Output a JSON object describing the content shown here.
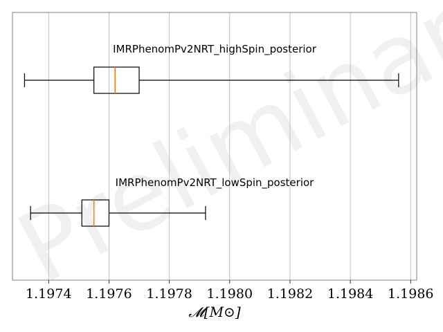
{
  "chart_data": {
    "type": "boxplot",
    "orientation": "horizontal",
    "watermark": "Preliminary",
    "xlabel": "𝓜[M⊙]",
    "xlim": [
      1.19728,
      1.19862
    ],
    "xticks": [
      1.1974,
      1.1976,
      1.1978,
      1.198,
      1.1982,
      1.1984,
      1.1986
    ],
    "xtick_labels": [
      "1.1974",
      "1.1976",
      "1.1978",
      "1.1980",
      "1.1982",
      "1.1984",
      "1.1986"
    ],
    "grid": {
      "x": true,
      "y": false
    },
    "series": [
      {
        "name": "IMRPhenomPv2NRT_highSpin_posterior",
        "whisker_low": 1.19732,
        "q1": 1.19755,
        "median": 1.19762,
        "q3": 1.1977,
        "whisker_high": 1.19856
      },
      {
        "name": "IMRPhenomPv2NRT_lowSpin_posterior",
        "whisker_low": 1.19734,
        "q1": 1.19751,
        "median": 1.19755,
        "q3": 1.1976,
        "whisker_high": 1.19792
      }
    ],
    "colors": {
      "box": "#000000",
      "median": "#ff7f0e",
      "grid": "#b0b0b0",
      "frame": "#808080"
    }
  }
}
